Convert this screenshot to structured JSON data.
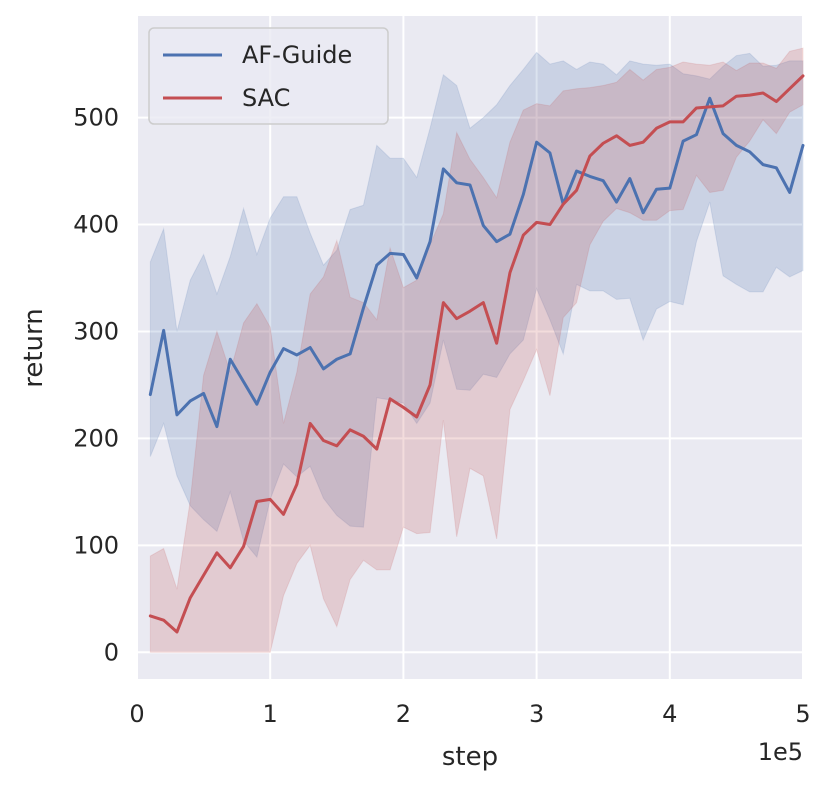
{
  "chart_data": {
    "type": "line",
    "title": "",
    "xlabel": "step",
    "ylabel": "return",
    "x_offset_text": "1e5",
    "xlim": [
      0,
      5
    ],
    "ylim": [
      -25,
      595
    ],
    "xticks": [
      0,
      1,
      2,
      3,
      4,
      5
    ],
    "xtick_labels": [
      "0",
      "1",
      "2",
      "3",
      "4",
      "5"
    ],
    "yticks": [
      0,
      100,
      200,
      300,
      400,
      500
    ],
    "ytick_labels": [
      "0",
      "100",
      "200",
      "300",
      "400",
      "500"
    ],
    "grid": true,
    "legend_position": "upper-left",
    "background": "#eaeaf2",
    "x": [
      0.1,
      0.2,
      0.3,
      0.4,
      0.5,
      0.6,
      0.7,
      0.8,
      0.9,
      1.0,
      1.1,
      1.2,
      1.3,
      1.4,
      1.5,
      1.6,
      1.7,
      1.8,
      1.9,
      2.0,
      2.1,
      2.2,
      2.3,
      2.4,
      2.5,
      2.6,
      2.7,
      2.8,
      2.9,
      3.0,
      3.1,
      3.2,
      3.3,
      3.4,
      3.5,
      3.6,
      3.7,
      3.8,
      3.9,
      4.0,
      4.1,
      4.2,
      4.3,
      4.4,
      4.5,
      4.6,
      4.7,
      4.8,
      4.9,
      5.0
    ],
    "series": [
      {
        "name": "AF-Guide",
        "color": "#4c72b0",
        "mean": [
          241,
          301,
          222,
          235,
          242,
          211,
          274,
          253,
          232,
          262,
          284,
          278,
          285,
          265,
          274,
          279,
          322,
          362,
          373,
          372,
          350,
          384,
          452,
          439,
          437,
          399,
          384,
          391,
          428,
          477,
          467,
          419,
          450,
          445,
          441,
          421,
          443,
          411,
          433,
          434,
          478,
          484,
          518,
          485,
          474,
          468,
          456,
          453,
          430,
          474
        ],
        "upper": [
          365,
          396,
          300,
          348,
          372,
          335,
          370,
          415,
          372,
          406,
          426,
          426,
          392,
          362,
          376,
          414,
          418,
          474,
          462,
          462,
          444,
          490,
          540,
          530,
          490,
          500,
          512,
          530,
          545,
          561,
          550,
          553,
          545,
          552,
          550,
          540,
          553,
          550,
          549,
          550,
          541,
          539,
          536,
          548,
          558,
          560,
          548,
          549,
          553,
          553
        ],
        "lower": [
          183,
          214,
          165,
          137,
          124,
          113,
          150,
          104,
          89,
          143,
          176,
          164,
          174,
          144,
          128,
          118,
          117,
          238,
          236,
          233,
          214,
          233,
          292,
          246,
          245,
          260,
          257,
          279,
          292,
          340,
          311,
          279,
          344,
          338,
          338,
          330,
          331,
          292,
          321,
          328,
          325,
          384,
          421,
          352,
          344,
          337,
          337,
          360,
          351,
          357
        ]
      },
      {
        "name": "SAC",
        "color": "#c44e52",
        "mean": [
          34,
          30,
          19,
          51,
          72,
          93,
          79,
          99,
          141,
          143,
          129,
          157,
          214,
          198,
          193,
          208,
          202,
          190,
          237,
          229,
          220,
          250,
          327,
          312,
          319,
          327,
          289,
          355,
          390,
          402,
          400,
          419,
          432,
          464,
          476,
          483,
          474,
          477,
          490,
          496,
          496,
          509,
          510,
          511,
          520,
          521,
          523,
          515,
          527,
          539
        ],
        "upper": [
          90,
          97,
          59,
          142,
          259,
          300,
          262,
          308,
          326,
          304,
          214,
          262,
          335,
          351,
          385,
          332,
          327,
          311,
          378,
          341,
          348,
          381,
          410,
          486,
          461,
          444,
          425,
          477,
          507,
          513,
          511,
          525,
          527,
          528,
          530,
          533,
          545,
          535,
          545,
          547,
          552,
          550,
          549,
          552,
          544,
          551,
          551,
          546,
          562,
          565
        ],
        "lower": [
          0,
          0,
          0,
          0,
          0,
          0,
          0,
          0,
          0,
          0,
          53,
          83,
          100,
          50,
          24,
          68,
          86,
          77,
          77,
          117,
          111,
          112,
          217,
          108,
          172,
          165,
          106,
          227,
          254,
          283,
          240,
          313,
          327,
          381,
          403,
          415,
          411,
          404,
          404,
          413,
          414,
          446,
          430,
          432,
          463,
          478,
          498,
          485,
          505,
          512
        ]
      }
    ]
  }
}
